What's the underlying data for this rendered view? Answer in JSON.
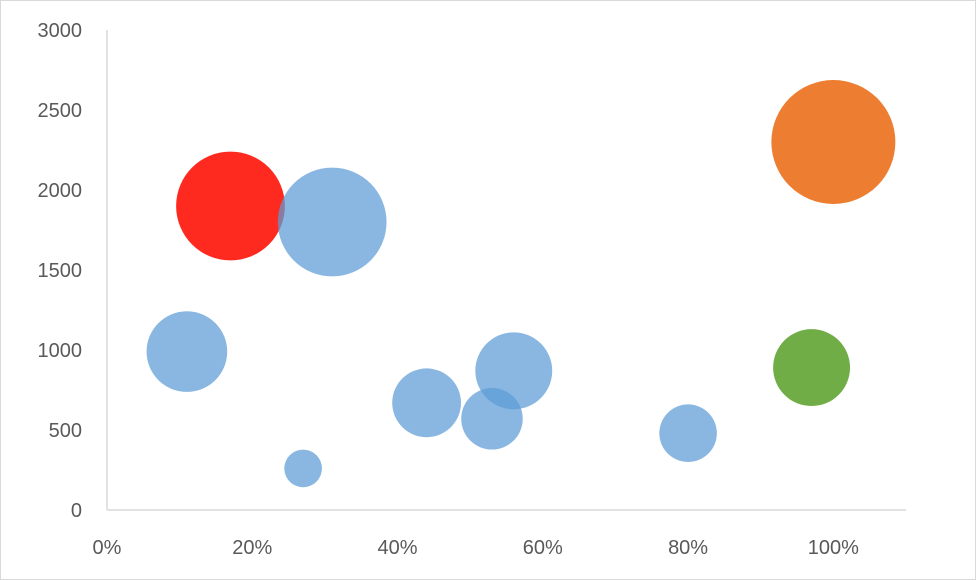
{
  "chart_data": {
    "type": "bubble",
    "x_axis": {
      "min": 0,
      "max": 1.1,
      "ticks": [
        {
          "value": 0,
          "label": "0%"
        },
        {
          "value": 0.2,
          "label": "20%"
        },
        {
          "value": 0.4,
          "label": "40%"
        },
        {
          "value": 0.6,
          "label": "60%"
        },
        {
          "value": 0.8,
          "label": "80%"
        },
        {
          "value": 1.0,
          "label": "100%"
        }
      ]
    },
    "y_axis": {
      "min": 0,
      "max": 3000,
      "ticks": [
        {
          "value": 0,
          "label": "0"
        },
        {
          "value": 500,
          "label": "500"
        },
        {
          "value": 1000,
          "label": "1000"
        },
        {
          "value": 1500,
          "label": "1500"
        },
        {
          "value": 2000,
          "label": "2000"
        },
        {
          "value": 2500,
          "label": "2500"
        },
        {
          "value": 3000,
          "label": "3000"
        }
      ]
    },
    "grid": false,
    "points": [
      {
        "x": 0.11,
        "y": 990,
        "size": 55,
        "color": "#5b9bd5"
      },
      {
        "x": 0.17,
        "y": 1900,
        "size": 100,
        "color": "#ff2a1f"
      },
      {
        "x": 0.27,
        "y": 260,
        "size": 12,
        "color": "#5b9bd5"
      },
      {
        "x": 0.31,
        "y": 1800,
        "size": 100,
        "color": "#5b9bd5"
      },
      {
        "x": 0.44,
        "y": 670,
        "size": 40,
        "color": "#5b9bd5"
      },
      {
        "x": 0.53,
        "y": 570,
        "size": 32,
        "color": "#5b9bd5"
      },
      {
        "x": 0.56,
        "y": 870,
        "size": 50,
        "color": "#5b9bd5"
      },
      {
        "x": 0.8,
        "y": 480,
        "size": 28,
        "color": "#5b9bd5"
      },
      {
        "x": 0.97,
        "y": 890,
        "size": 50,
        "color": "#70ad47"
      },
      {
        "x": 1.0,
        "y": 2300,
        "size": 130,
        "color": "#ed7d31"
      }
    ],
    "colors": {
      "default": "#5b9bd5",
      "highlight_red": "#ff2a1f",
      "highlight_orange": "#ed7d31",
      "highlight_green": "#70ad47",
      "axis": "#d9d9d9",
      "tick_text": "#595959"
    }
  }
}
